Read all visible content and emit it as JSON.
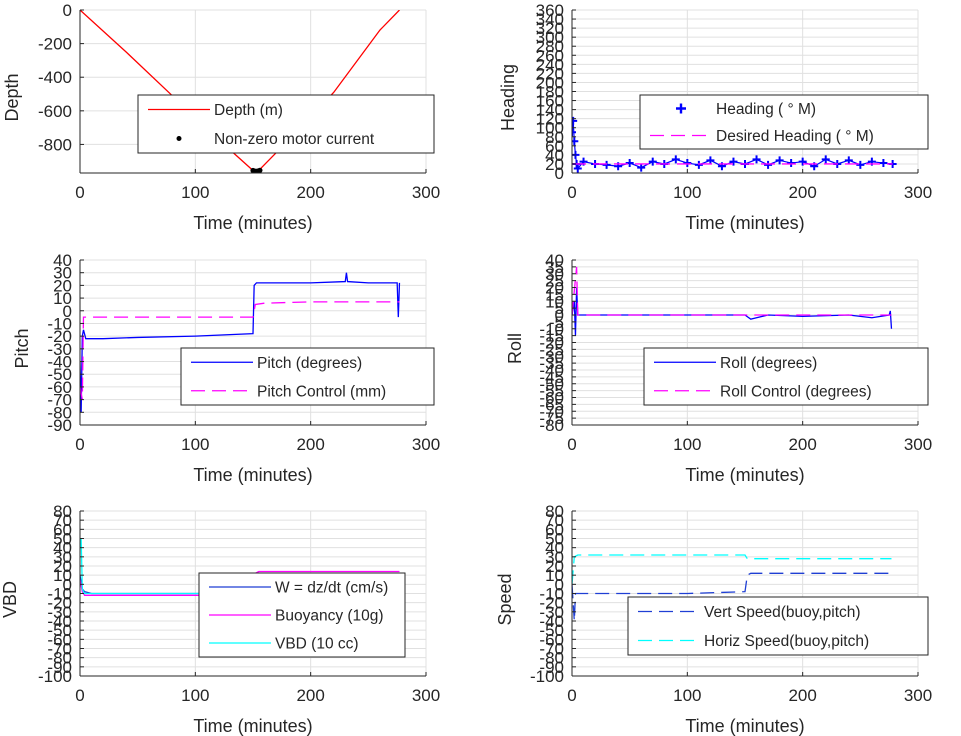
{
  "colors": {
    "red": "#ff0000",
    "blue": "#0000ff",
    "magenta": "#ff00ff",
    "cyan": "#00ffff",
    "dark_blue": "#1f3fd4",
    "grid": "#e0e0e0",
    "axis": "#262626"
  },
  "chart_data": [
    {
      "id": "depth",
      "type": "line",
      "ylabel": "Depth",
      "xlabel": "Time (minutes)",
      "xlim": [
        0,
        300
      ],
      "ylim": [
        -970,
        0
      ],
      "xticks": [
        0,
        100,
        200,
        300
      ],
      "yticks": [
        0,
        -200,
        -400,
        -600,
        -800
      ],
      "legend_position": "center",
      "series": [
        {
          "name": "Depth (m)",
          "color": "#ff0000",
          "style": "solid",
          "x": [
            0,
            40,
            80,
            120,
            150,
            153,
            155,
            180,
            220,
            260,
            277
          ],
          "y": [
            0,
            -250,
            -510,
            -770,
            -955,
            -960,
            -955,
            -780,
            -490,
            -120,
            0
          ]
        },
        {
          "name": "Non-zero motor current",
          "color": "#000000",
          "style": "dot",
          "x": [
            150,
            151,
            152,
            153,
            154,
            155,
            156
          ],
          "y": [
            -955,
            -958,
            -960,
            -960,
            -959,
            -957,
            -954
          ]
        }
      ]
    },
    {
      "id": "heading",
      "type": "line",
      "ylabel": "Heading",
      "xlabel": "Time (minutes)",
      "xlim": [
        0,
        300
      ],
      "ylim": [
        0,
        360
      ],
      "xticks": [
        0,
        100,
        200,
        300
      ],
      "yticks": [
        0,
        20,
        40,
        60,
        80,
        100,
        120,
        140,
        160,
        180,
        200,
        220,
        240,
        260,
        280,
        300,
        320,
        340,
        360
      ],
      "legend_position": "bottom-right",
      "series": [
        {
          "name": "Heading (   ° M)",
          "color": "#0000ff",
          "style": "plus",
          "x": [
            0,
            1,
            2,
            3,
            4,
            5,
            10,
            20,
            30,
            40,
            50,
            60,
            70,
            80,
            90,
            100,
            110,
            120,
            130,
            140,
            150,
            160,
            170,
            180,
            190,
            200,
            210,
            220,
            230,
            240,
            250,
            260,
            270,
            278
          ],
          "y": [
            90,
            115,
            70,
            40,
            20,
            10,
            25,
            20,
            18,
            15,
            22,
            12,
            25,
            20,
            30,
            22,
            18,
            28,
            15,
            25,
            20,
            30,
            18,
            28,
            22,
            25,
            15,
            30,
            20,
            28,
            18,
            25,
            22,
            20
          ]
        },
        {
          "name": "Desired Heading (     ° M)",
          "color": "#ff00ff",
          "style": "dash",
          "x": [
            0,
            4,
            278
          ],
          "y": [
            20,
            20,
            20
          ]
        }
      ]
    },
    {
      "id": "pitch",
      "type": "line",
      "ylabel": "Pitch",
      "xlabel": "Time (minutes)",
      "xlim": [
        0,
        300
      ],
      "ylim": [
        -90,
        40
      ],
      "xticks": [
        0,
        100,
        200,
        300
      ],
      "yticks": [
        40,
        30,
        20,
        10,
        0,
        -10,
        -20,
        -30,
        -40,
        -50,
        -60,
        -70,
        -80,
        -90
      ],
      "legend_position": "bottom-right",
      "series": [
        {
          "name": "Pitch (degrees)",
          "color": "#0000ff",
          "style": "solid",
          "x": [
            0,
            1,
            2,
            3,
            5,
            20,
            50,
            100,
            150,
            151,
            153,
            155,
            200,
            230,
            231,
            232,
            250,
            275,
            276,
            277
          ],
          "y": [
            -40,
            -80,
            -20,
            -15,
            -22,
            -22,
            -21,
            -20,
            -18,
            20,
            22,
            22,
            22,
            23,
            30,
            23,
            22,
            22,
            -5,
            22
          ]
        },
        {
          "name": "Pitch Control (mm)",
          "color": "#ff00ff",
          "style": "dash",
          "x": [
            0,
            2,
            3,
            5,
            150,
            152,
            160,
            200,
            277
          ],
          "y": [
            -60,
            -70,
            -5,
            -5,
            -5,
            5,
            6,
            7,
            7
          ]
        }
      ]
    },
    {
      "id": "roll",
      "type": "line",
      "ylabel": "Roll",
      "xlabel": "Time (minutes)",
      "xlim": [
        0,
        300
      ],
      "ylim": [
        -80,
        40
      ],
      "xticks": [
        0,
        100,
        200,
        300
      ],
      "yticks": [
        40,
        35,
        30,
        25,
        20,
        15,
        10,
        5,
        0,
        -5,
        -10,
        -15,
        -20,
        -25,
        -30,
        -35,
        -40,
        -45,
        -50,
        -55,
        -60,
        -65,
        -70,
        -75,
        -80
      ],
      "legend_position": "bottom-right",
      "series": [
        {
          "name": "Roll (degrees)",
          "color": "#0000ff",
          "style": "solid",
          "x": [
            0,
            2,
            3,
            4,
            5,
            6,
            15,
            40,
            80,
            90,
            95,
            100,
            120,
            140,
            150,
            155,
            160,
            170,
            200,
            240,
            260,
            275,
            276,
            277
          ],
          "y": [
            0,
            10,
            -15,
            20,
            0,
            0,
            0,
            0,
            0,
            0,
            0,
            0,
            0,
            0,
            0,
            -3,
            -2,
            0,
            -1,
            0,
            -2,
            0,
            3,
            -10
          ]
        },
        {
          "name": "Roll Control (degrees)",
          "color": "#ff00ff",
          "style": "dash",
          "x": [
            0,
            4,
            5,
            6,
            80,
            90,
            140,
            277
          ],
          "y": [
            0,
            35,
            0,
            0,
            0,
            0,
            0,
            0
          ]
        }
      ]
    },
    {
      "id": "vbd",
      "type": "line",
      "ylabel": "VBD",
      "xlabel": "Time (minutes)",
      "xlim": [
        0,
        300
      ],
      "ylim": [
        -100,
        80
      ],
      "xticks": [
        0,
        100,
        200,
        300
      ],
      "yticks": [
        80,
        70,
        60,
        50,
        40,
        30,
        20,
        10,
        0,
        -10,
        -20,
        -30,
        -40,
        -50,
        -60,
        -70,
        -80,
        -90,
        -100
      ],
      "legend_position": "bottom-right",
      "series": [
        {
          "name": "W = dz/dt (cm/s)",
          "color": "#1f3fd4",
          "style": "solid",
          "x": [
            0,
            2,
            4,
            10,
            50,
            100,
            150,
            151,
            153,
            155,
            200,
            277
          ],
          "y": [
            10,
            -5,
            -8,
            -10,
            -10,
            -10,
            -9,
            8,
            10,
            12,
            12,
            11
          ]
        },
        {
          "name": "Buoyancy (10g)",
          "color": "#ff00ff",
          "style": "solid",
          "x": [
            0,
            2,
            4,
            10,
            50,
            100,
            150,
            152,
            155,
            200,
            277
          ],
          "y": [
            5,
            -8,
            -12,
            -12,
            -12,
            -12,
            -12,
            12,
            14,
            14,
            14
          ]
        },
        {
          "name": "VBD (10 cc)",
          "color": "#00ffff",
          "style": "solid",
          "x": [
            0,
            1,
            2,
            3,
            4,
            10,
            100,
            150,
            152,
            155,
            277
          ],
          "y": [
            40,
            50,
            -5,
            -8,
            -10,
            -10,
            -10,
            -10,
            10,
            12,
            12
          ]
        }
      ]
    },
    {
      "id": "speed",
      "type": "line",
      "ylabel": "Speed",
      "xlabel": "Time (minutes)",
      "xlim": [
        0,
        300
      ],
      "ylim": [
        -100,
        80
      ],
      "xticks": [
        0,
        100,
        200,
        300
      ],
      "yticks": [
        80,
        70,
        60,
        50,
        40,
        30,
        20,
        10,
        0,
        -10,
        -20,
        -30,
        -40,
        -50,
        -60,
        -70,
        -80,
        -90,
        -100
      ],
      "legend_position": "bottom-right",
      "series": [
        {
          "name": "Vert Speed(buoy,pitch)",
          "color": "#1f3fd4",
          "style": "dash",
          "x": [
            0,
            2,
            3,
            5,
            50,
            100,
            150,
            152,
            155,
            200,
            277
          ],
          "y": [
            0,
            -40,
            -10,
            -10,
            -10,
            -10,
            -8,
            10,
            12,
            12,
            12
          ]
        },
        {
          "name": "Horiz Speed(buoy,pitch)",
          "color": "#00ffff",
          "style": "dash",
          "x": [
            0,
            2,
            5,
            100,
            150,
            152,
            155,
            200,
            277
          ],
          "y": [
            0,
            30,
            32,
            32,
            32,
            28,
            28,
            28,
            28
          ]
        }
      ]
    }
  ]
}
